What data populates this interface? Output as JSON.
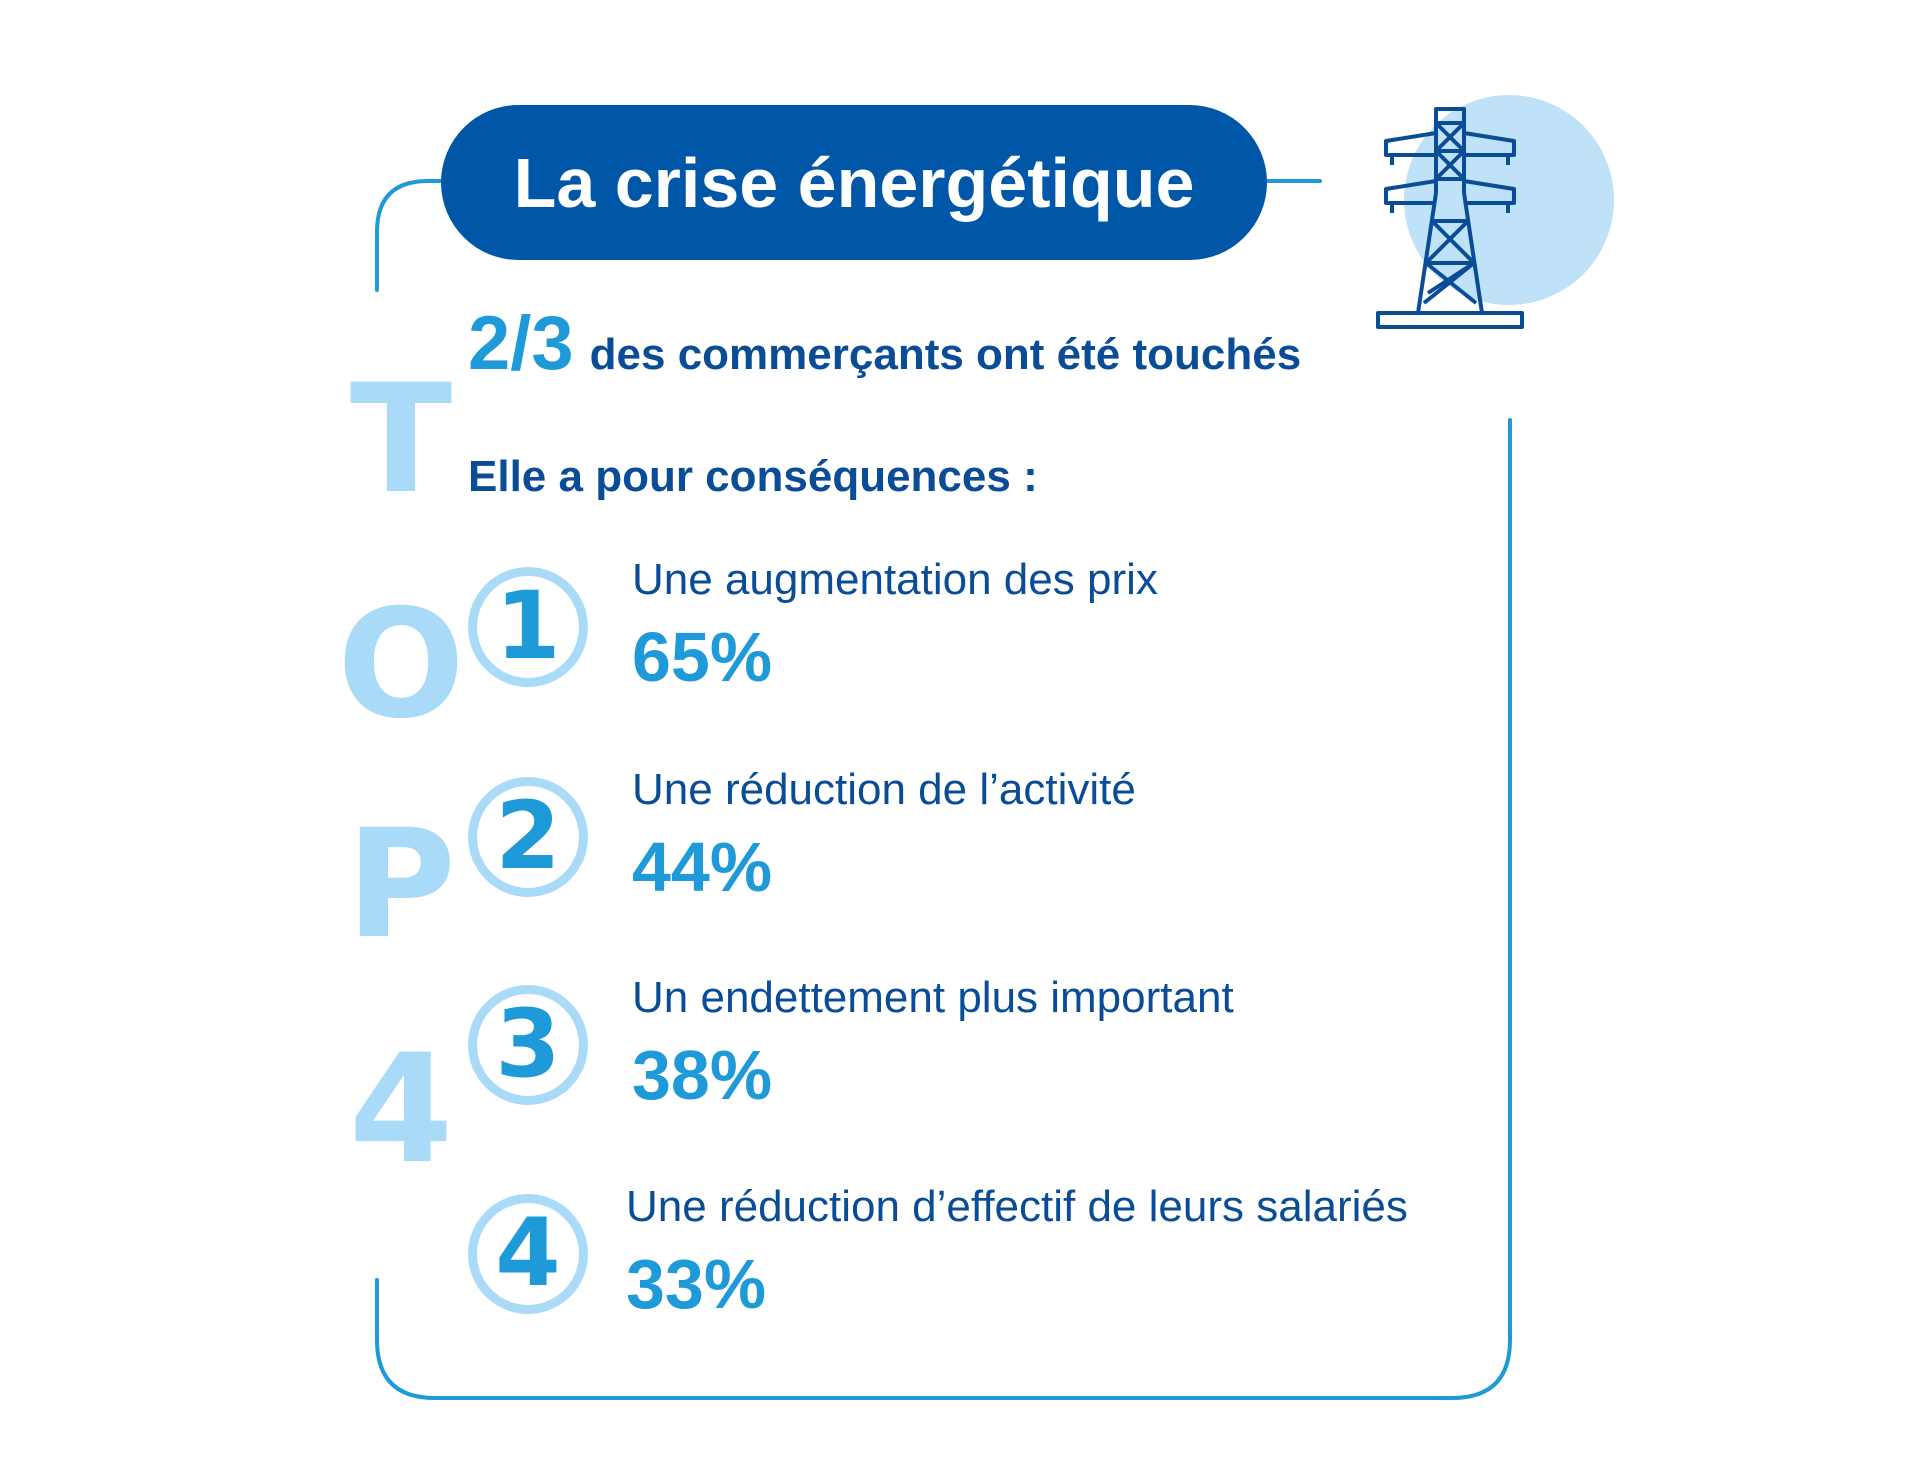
{
  "title": "La crise énergétique",
  "headline": {
    "fraction": "2/3",
    "text": "des commerçants ont été touchés"
  },
  "intro": "Elle a pour conséquences :",
  "side_letters": [
    "T",
    "O",
    "P",
    "4"
  ],
  "items": [
    {
      "rank": "1",
      "label": "Une augmentation des prix",
      "value": "65%"
    },
    {
      "rank": "2",
      "label": "Une réduction de l’activité",
      "value": "44%"
    },
    {
      "rank": "3",
      "label": "Un endettement plus important",
      "value": "38%"
    },
    {
      "rank": "4",
      "label": "Une réduction d’effectif de leurs salariés",
      "value": "33%"
    }
  ],
  "colors": {
    "dark_blue": "#0056a7",
    "text_blue": "#0a4d96",
    "accent_blue": "#1e9ad8",
    "light_blue": "#a9dbf8",
    "icon_circle": "#bfe2f9"
  },
  "icon": "electricity-pylon-icon"
}
